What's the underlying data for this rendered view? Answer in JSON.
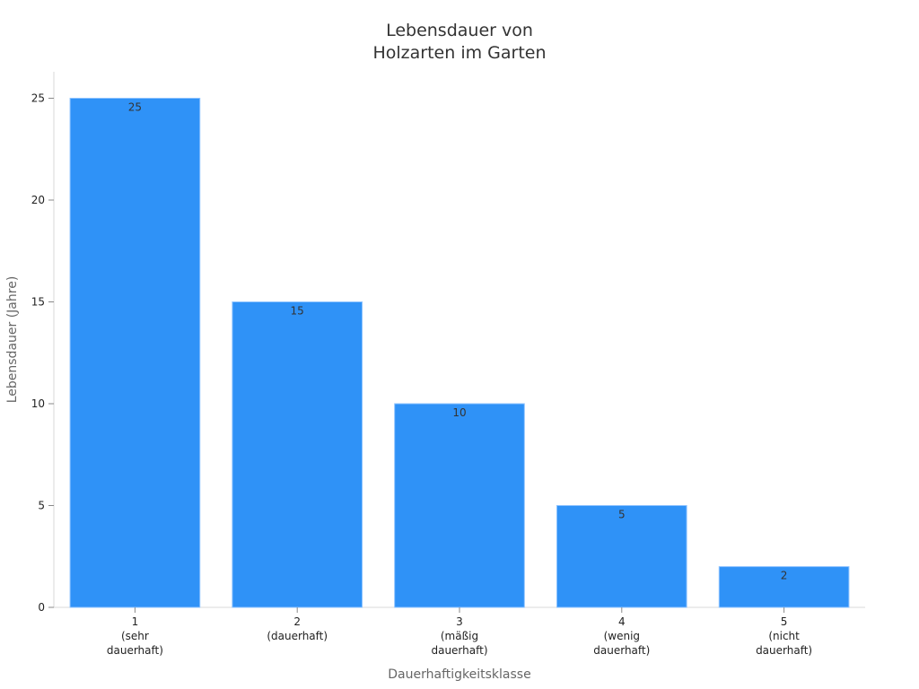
{
  "chart_data": {
    "type": "bar",
    "title": [
      "Lebensdauer von",
      "Holzarten im Garten"
    ],
    "xlabel": "Dauerhaftigkeitsklasse",
    "ylabel": "Lebensdauer (Jahre)",
    "categories": [
      [
        "1",
        "(sehr",
        "dauerhaft)"
      ],
      [
        "2",
        "(dauerhaft)"
      ],
      [
        "3",
        "(mäßig",
        "dauerhaft)"
      ],
      [
        "4",
        "(wenig",
        "dauerhaft)"
      ],
      [
        "5",
        "(nicht",
        "dauerhaft)"
      ]
    ],
    "values": [
      25,
      15,
      10,
      5,
      2
    ],
    "data_labels": [
      "25",
      "15",
      "10",
      "5",
      "2"
    ],
    "ylim": [
      0,
      26.3
    ],
    "yticks": [
      0,
      5,
      10,
      15,
      20,
      25
    ],
    "bar_color": "#2f92f7",
    "bar_edge_color": "#8ec3ff",
    "grid": false,
    "legend": "none"
  }
}
